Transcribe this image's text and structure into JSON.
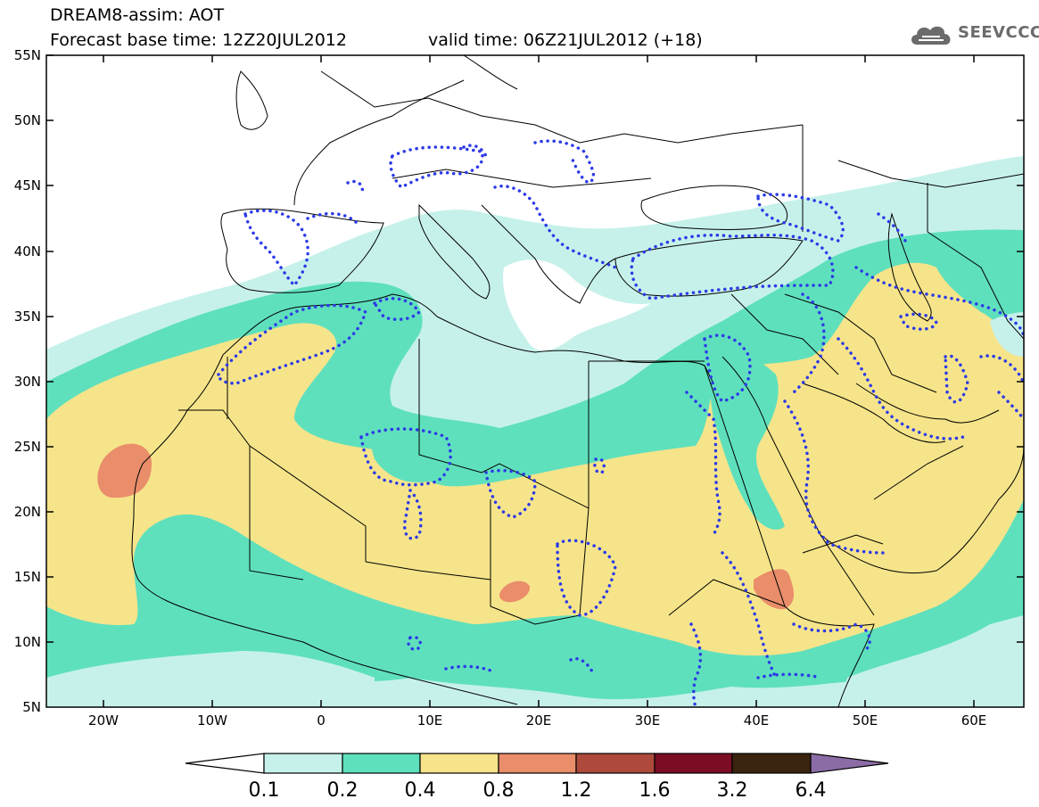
{
  "header": {
    "title": "DREAM8-assim: AOT",
    "base_time": "Forecast base time: 12Z20JUL2012",
    "valid_time": "valid time: 06Z21JUL2012 (+18)"
  },
  "logo": {
    "text": "SEEVCCC",
    "icon": "cloud-icon"
  },
  "map": {
    "lat_labels": [
      "55N",
      "50N",
      "45N",
      "40N",
      "35N",
      "30N",
      "25N",
      "20N",
      "15N",
      "10N",
      "5N"
    ],
    "lon_labels": [
      "20W",
      "10W",
      "0",
      "10E",
      "20E",
      "30E",
      "40E",
      "50E",
      "60E"
    ],
    "lat_range": [
      5,
      55
    ],
    "lon_range": [
      -25,
      65
    ]
  },
  "colorbar": {
    "labels": [
      "0.1",
      "0.2",
      "0.4",
      "0.8",
      "1.2",
      "1.6",
      "3.2",
      "6.4"
    ],
    "colors": [
      "#ffffff",
      "#c6f1ea",
      "#5fe0bd",
      "#f6e48a",
      "#e98d6a",
      "#ad4a3c",
      "#7a0d24",
      "#3a2410",
      "#8c6ca6"
    ]
  },
  "colors": {
    "aot_01": "#c6f1ea",
    "aot_02": "#5fe0bd",
    "aot_04": "#f6e48a",
    "aot_08": "#e98d6a",
    "dotted_contour": "#2c3ae6"
  }
}
